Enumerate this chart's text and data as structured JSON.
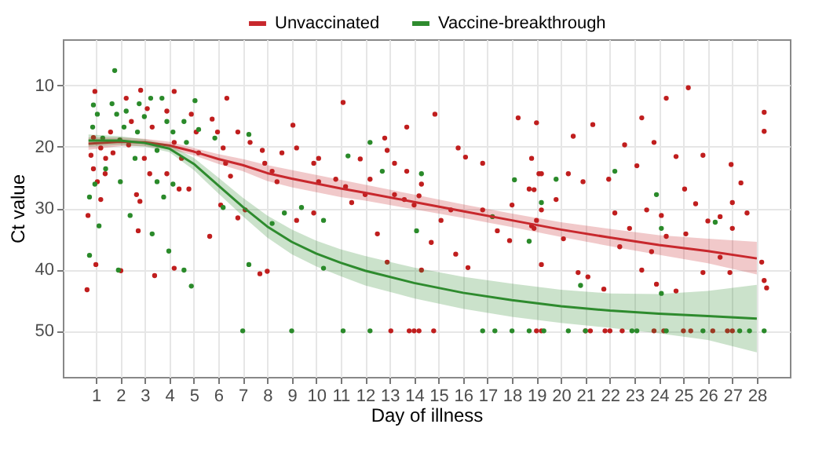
{
  "chart_data": {
    "type": "scatter",
    "xlabel": "Day of illness",
    "ylabel": "Ct value",
    "xlim": [
      -0.35,
      29.35
    ],
    "ylim": [
      57.5,
      2.5
    ],
    "xticks": [
      1,
      2,
      3,
      4,
      5,
      6,
      7,
      8,
      9,
      10,
      11,
      12,
      13,
      14,
      15,
      16,
      17,
      18,
      19,
      20,
      21,
      22,
      23,
      24,
      25,
      26,
      27,
      28
    ],
    "yticks": [
      10,
      20,
      30,
      40,
      50
    ],
    "grid": true,
    "legend": "top",
    "series": [
      {
        "type": "scatter",
        "marker": "circle",
        "color": "#c01e1e",
        "x": [
          0.64,
          0.96,
          0.68,
          1.0,
          1.38,
          2.02,
          2.73,
          2.8,
          3.4,
          4.2,
          5.65,
          6.1,
          6.35,
          7.1,
          6.8,
          7.7,
          8.0,
          9.05,
          9.2,
          9.9,
          11.1,
          10.1,
          11.8,
          12.8,
          12.9,
          12.5,
          0.9,
          0.8,
          1.2,
          1.4,
          0.9,
          1.06,
          1.2,
          1.6,
          1.7,
          2.24,
          2.45,
          2.34,
          2.83,
          3.1,
          3.3,
          2.98,
          3.2,
          2.66,
          3.9,
          4.2,
          4.2,
          4.5,
          3.9,
          4.4,
          4.9,
          5.1,
          5.2,
          4.8,
          5.75,
          5.97,
          6.2,
          6.3,
          6.5,
          6.8,
          7.3,
          7.8,
          7.9,
          8.2,
          8.4,
          8.6,
          9.2,
          9.9,
          10.1,
          10.8,
          11.2,
          11.45,
          12,
          12.2,
          12.9,
          13.2,
          13.2,
          25.2,
          24.3,
          28.3,
          28.3,
          23.3,
          18.25,
          19.0,
          14.85,
          13.7,
          21.3,
          20.5,
          15.8,
          16.1,
          25.8,
          24.7,
          22.6,
          23.8,
          23.1,
          26.95,
          27.35,
          25.05,
          25.5,
          27.0,
          27.6,
          26.5,
          27.0,
          28.2,
          28.3,
          28.4,
          25.8,
          24.7,
          23.9,
          23.3,
          21.75,
          20.7,
          21.1,
          19.2,
          16.2,
          15.7,
          14.7,
          14.3,
          16.8,
          16.8,
          17.4,
          17.9,
          18.7,
          19.2,
          19.8,
          20.3,
          20.9,
          21.95,
          22.2,
          22.8,
          23.5,
          24.1,
          24.3,
          25.1,
          26.0,
          26.5,
          26.9,
          23.7,
          22.4,
          20.1,
          18.8,
          18.0,
          15.5,
          15.1,
          13.6,
          14,
          14.2,
          13.7,
          14.3,
          18.9,
          19,
          19.2,
          18.9,
          19.1,
          18.8,
          13.05,
          13.8,
          14.0,
          14.2,
          14.8,
          19,
          19.2,
          21,
          21.2,
          21.8,
          22,
          22.5,
          23.8,
          24.2,
          25,
          25.3,
          26.2,
          26.8,
          27
        ],
        "values": [
          43.3,
          11,
          31.2,
          39.2,
          24.4,
          40.2,
          33.7,
          28.9,
          41,
          39.8,
          34.6,
          29.5,
          12.1,
          30.3,
          31.6,
          40.7,
          40.3,
          16.5,
          32,
          30.8,
          12.8,
          21.9,
          22,
          18.6,
          38.8,
          34.2,
          18.5,
          21.4,
          20.2,
          21.9,
          23.6,
          25.7,
          28.6,
          17.6,
          21,
          12.1,
          15.9,
          19.7,
          10.8,
          13.8,
          16.8,
          21.9,
          24.4,
          27.8,
          14.2,
          11,
          19.3,
          21.9,
          24.4,
          26.9,
          14.7,
          17.6,
          21,
          26.9,
          15.5,
          17.6,
          20.2,
          22.7,
          24.8,
          17.6,
          19.3,
          20.6,
          22.7,
          24,
          25.7,
          21,
          20.2,
          22.7,
          25.7,
          25.3,
          26.5,
          29.1,
          27.8,
          25.3,
          20.6,
          22.7,
          27.8,
          10.4,
          12.1,
          14.4,
          17.5,
          15.3,
          15.3,
          16.1,
          14.7,
          16.8,
          16.4,
          18.3,
          20.2,
          21.7,
          21.4,
          21.6,
          19.7,
          19.3,
          23.1,
          22.9,
          25.9,
          26.9,
          29.3,
          29.1,
          30.8,
          31.4,
          33.3,
          38.8,
          41.8,
          43,
          40.5,
          43.5,
          42.4,
          40.1,
          43.2,
          40.5,
          41.2,
          39.2,
          39.7,
          37.5,
          35.6,
          40.1,
          22.7,
          30.3,
          33.7,
          35.3,
          26.9,
          24.4,
          28.6,
          24.4,
          25.7,
          25.3,
          30.8,
          33.3,
          30.3,
          31.2,
          34.6,
          34.2,
          32.1,
          38,
          40.5,
          37.1,
          36.3,
          35,
          32.9,
          29.5,
          30.3,
          32,
          28.6,
          29.5,
          28,
          24,
          26.1,
          33.3,
          32,
          30.3,
          27,
          24.4,
          21.9,
          50,
          50,
          50,
          50,
          50,
          50,
          50,
          50,
          50,
          50,
          50,
          50,
          50,
          50,
          50,
          50,
          50,
          50,
          50
        ]
      },
      {
        "type": "scatter",
        "marker": "circle",
        "color": "#2a8a2a",
        "x": [
          1.77,
          0.74,
          0.74,
          1.13,
          1.92,
          2.4,
          3.3,
          3.98,
          4.9,
          4.6,
          5.05,
          5.86,
          6.2,
          7.25,
          7.25,
          8.2,
          8.7,
          9.4,
          10.3,
          10.3,
          11.3,
          12.2,
          12.7,
          0.9,
          1.06,
          0.87,
          1.28,
          1.66,
          1.85,
          2.24,
          2.15,
          1.98,
          2.77,
          2.98,
          3.24,
          2.7,
          3.7,
          3.9,
          4.15,
          4.6,
          4.7,
          5.2,
          3.5,
          2.6,
          2.0,
          1.4,
          0.96,
          3.5,
          3.77,
          4.15,
          14.3,
          14.1,
          17.2,
          18.1,
          19.8,
          19.2,
          22.2,
          23.9,
          24.1,
          26.3,
          20.8,
          24.1,
          18.7,
          7.0,
          9.0,
          11.1,
          12.2,
          16.8,
          17.3,
          18.0,
          18.7,
          19.3,
          20.3,
          21.0,
          22.9,
          23.1,
          24.3,
          25.8,
          27.3,
          27.7,
          28.3
        ],
        "values": [
          7.6,
          28.2,
          37.7,
          32.9,
          40.1,
          31.2,
          34.2,
          37,
          42.7,
          40.1,
          12.5,
          18.6,
          29.9,
          18,
          39.2,
          32.5,
          30.8,
          29.9,
          32,
          39.8,
          21.5,
          19.3,
          24,
          13.2,
          14.7,
          16.8,
          18.6,
          13,
          14.7,
          14.2,
          16.8,
          18.9,
          13,
          15.1,
          12.1,
          17.6,
          12.1,
          15.9,
          17.6,
          15.9,
          19.3,
          17.2,
          20.6,
          21.9,
          25.7,
          23.6,
          26.1,
          25.7,
          28.2,
          26.1,
          24.4,
          33.7,
          31.4,
          25.4,
          25.3,
          29.1,
          24,
          27.8,
          33.3,
          32.3,
          42.6,
          43.9,
          35.4,
          50,
          50,
          50,
          50,
          50,
          50,
          50,
          50,
          50,
          50,
          50,
          50,
          50,
          50,
          50,
          50,
          50,
          50
        ]
      },
      {
        "name": "Unvaccinated",
        "type": "line",
        "marker": "none",
        "color": "#c8282d",
        "x": [
          0.7,
          2,
          3,
          4,
          5,
          6,
          7,
          8,
          9,
          10,
          11,
          12,
          14,
          16,
          18,
          20,
          22,
          24,
          26,
          28
        ],
        "values": [
          19.5,
          19.2,
          19.3,
          19.8,
          20.8,
          22,
          23,
          24.3,
          25.2,
          26,
          26.8,
          27.5,
          29,
          30.5,
          32,
          33.5,
          34.8,
          36,
          37,
          38.2
        ],
        "lower": [
          18.5,
          18.5,
          18.7,
          19.2,
          20.2,
          21.2,
          22,
          23,
          23.8,
          24.6,
          25.4,
          26.2,
          27.8,
          29.4,
          30.9,
          32.3,
          33.4,
          34.4,
          35,
          35.5
        ],
        "upper": [
          20.5,
          19.9,
          19.9,
          20.4,
          21.4,
          22.8,
          24,
          25.6,
          26.6,
          27.4,
          28.2,
          28.8,
          30.2,
          31.6,
          33.1,
          34.7,
          36.2,
          37.6,
          39,
          40.8
        ]
      },
      {
        "name": "Vaccine-breakthrough",
        "type": "line",
        "marker": "none",
        "color": "#2e8b2e",
        "x": [
          0.7,
          2,
          3,
          4,
          5,
          6,
          7,
          8,
          9,
          10,
          11,
          12,
          14,
          16,
          18,
          20,
          22,
          24,
          26,
          28
        ],
        "values": [
          19,
          19,
          19.4,
          20.3,
          22.8,
          26.3,
          29.8,
          33,
          35.5,
          37.4,
          38.9,
          40.2,
          42.2,
          43.8,
          45,
          46,
          46.7,
          47.2,
          47.6,
          48
        ],
        "lower": [
          18,
          18.3,
          18.8,
          19.7,
          21.8,
          25,
          28.3,
          31.2,
          33.5,
          35.3,
          36.7,
          37.8,
          39.7,
          41.2,
          42.3,
          43.3,
          43.9,
          44,
          43.5,
          42.5
        ],
        "upper": [
          20,
          19.7,
          20,
          20.9,
          23.8,
          27.6,
          31.3,
          34.8,
          37.5,
          39.5,
          41.1,
          42.6,
          44.7,
          46.4,
          47.7,
          48.7,
          49.5,
          50.4,
          51.5,
          53.5
        ]
      }
    ]
  }
}
